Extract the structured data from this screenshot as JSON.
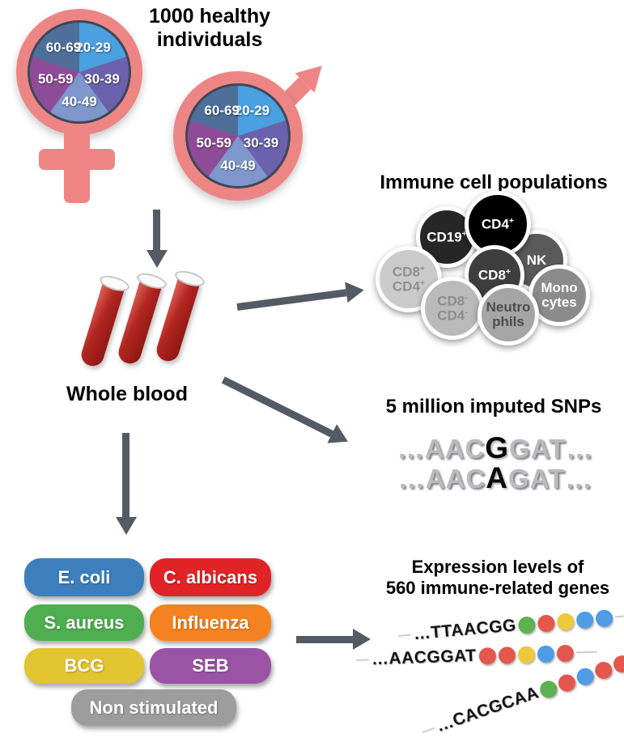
{
  "colors": {
    "pink": "#ee8585",
    "arrow": "#555b65",
    "pie_border": "#3e4756"
  },
  "cohort": {
    "title_line1": "1000 healthy",
    "title_line2": "individuals",
    "age_groups": [
      {
        "label": "20-29",
        "color": "#4aa0e0"
      },
      {
        "label": "30-39",
        "color": "#6c61ad"
      },
      {
        "label": "40-49",
        "color": "#7e97cc"
      },
      {
        "label": "50-59",
        "color": "#8e4b98"
      },
      {
        "label": "60-69",
        "color": "#4f6f9b"
      }
    ]
  },
  "whole_blood": {
    "label": "Whole blood"
  },
  "immune_cells": {
    "title": "Immune cell populations",
    "cells": [
      {
        "id": "cd19",
        "lines": [
          {
            "t": "CD19",
            "s": "+"
          }
        ],
        "bg": "#262626",
        "fg": "#ffffff"
      },
      {
        "id": "nk",
        "lines": [
          {
            "t": "NK",
            "s": ""
          }
        ],
        "bg": "#5a5a5a",
        "fg": "#ffffff"
      },
      {
        "id": "cd4",
        "lines": [
          {
            "t": "CD4",
            "s": "+"
          }
        ],
        "bg": "#000000",
        "fg": "#ffffff"
      },
      {
        "id": "cd8p-cd4p",
        "lines": [
          {
            "t": "CD8",
            "s": "+"
          },
          {
            "t": "CD4",
            "s": "+"
          }
        ],
        "bg": "#cbcbcb",
        "fg": "#8f8f8f"
      },
      {
        "id": "cd8",
        "lines": [
          {
            "t": "CD8",
            "s": "+"
          }
        ],
        "bg": "#3e3e3e",
        "fg": "#ffffff"
      },
      {
        "id": "monocytes",
        "lines": [
          {
            "t": "Mono",
            "s": ""
          },
          {
            "t": "cytes",
            "s": ""
          }
        ],
        "bg": "#8b8b8b",
        "fg": "#ffffff"
      },
      {
        "id": "cd8n-cd4n",
        "lines": [
          {
            "t": "CD8",
            "s": "-"
          },
          {
            "t": "CD4",
            "s": "-"
          }
        ],
        "bg": "#bababa",
        "fg": "#8d8d8d"
      },
      {
        "id": "neutrophils",
        "lines": [
          {
            "t": "Neutro",
            "s": ""
          },
          {
            "t": "phils",
            "s": ""
          }
        ],
        "bg": "#a5a5a5",
        "fg": "#4d4d4d"
      }
    ]
  },
  "snps": {
    "title": "5 million imputed SNPs",
    "ellipsis": "…",
    "sequences": [
      {
        "left": "AAC",
        "variant": "G",
        "right": "GAT"
      },
      {
        "left": "AAC",
        "variant": "A",
        "right": "GAT"
      }
    ]
  },
  "stimuli": {
    "items": [
      {
        "label": "E. coli",
        "color": "#3c7fbc"
      },
      {
        "label": "C. albicans",
        "color": "#e02327"
      },
      {
        "label": "S. aureus",
        "color": "#4fae50"
      },
      {
        "label": "Influenza",
        "color": "#f58220"
      },
      {
        "label": "BCG",
        "color": "#e3c431"
      },
      {
        "label": "SEB",
        "color": "#9a53a5"
      },
      {
        "label": "Non stimulated",
        "color": "#9d9d9d"
      }
    ]
  },
  "expression": {
    "title_line1": "Expression levels of",
    "title_line2": "560 immune-related genes",
    "ellipsis": "…",
    "dot_colors": {
      "green": "#5cb151",
      "red": "#e4574e",
      "yellow": "#eec93e",
      "blue": "#4f9ce6"
    },
    "strands": [
      {
        "seq": "TTAACGG",
        "dots": [
          "green",
          "red",
          "yellow",
          "blue",
          "blue"
        ]
      },
      {
        "seq": "AACGGAT",
        "dots": [
          "red",
          "red",
          "yellow",
          "blue",
          "red"
        ]
      },
      {
        "seq": "CACGCAA",
        "dots": [
          "green",
          "red",
          "blue",
          "red",
          "red"
        ]
      }
    ]
  }
}
